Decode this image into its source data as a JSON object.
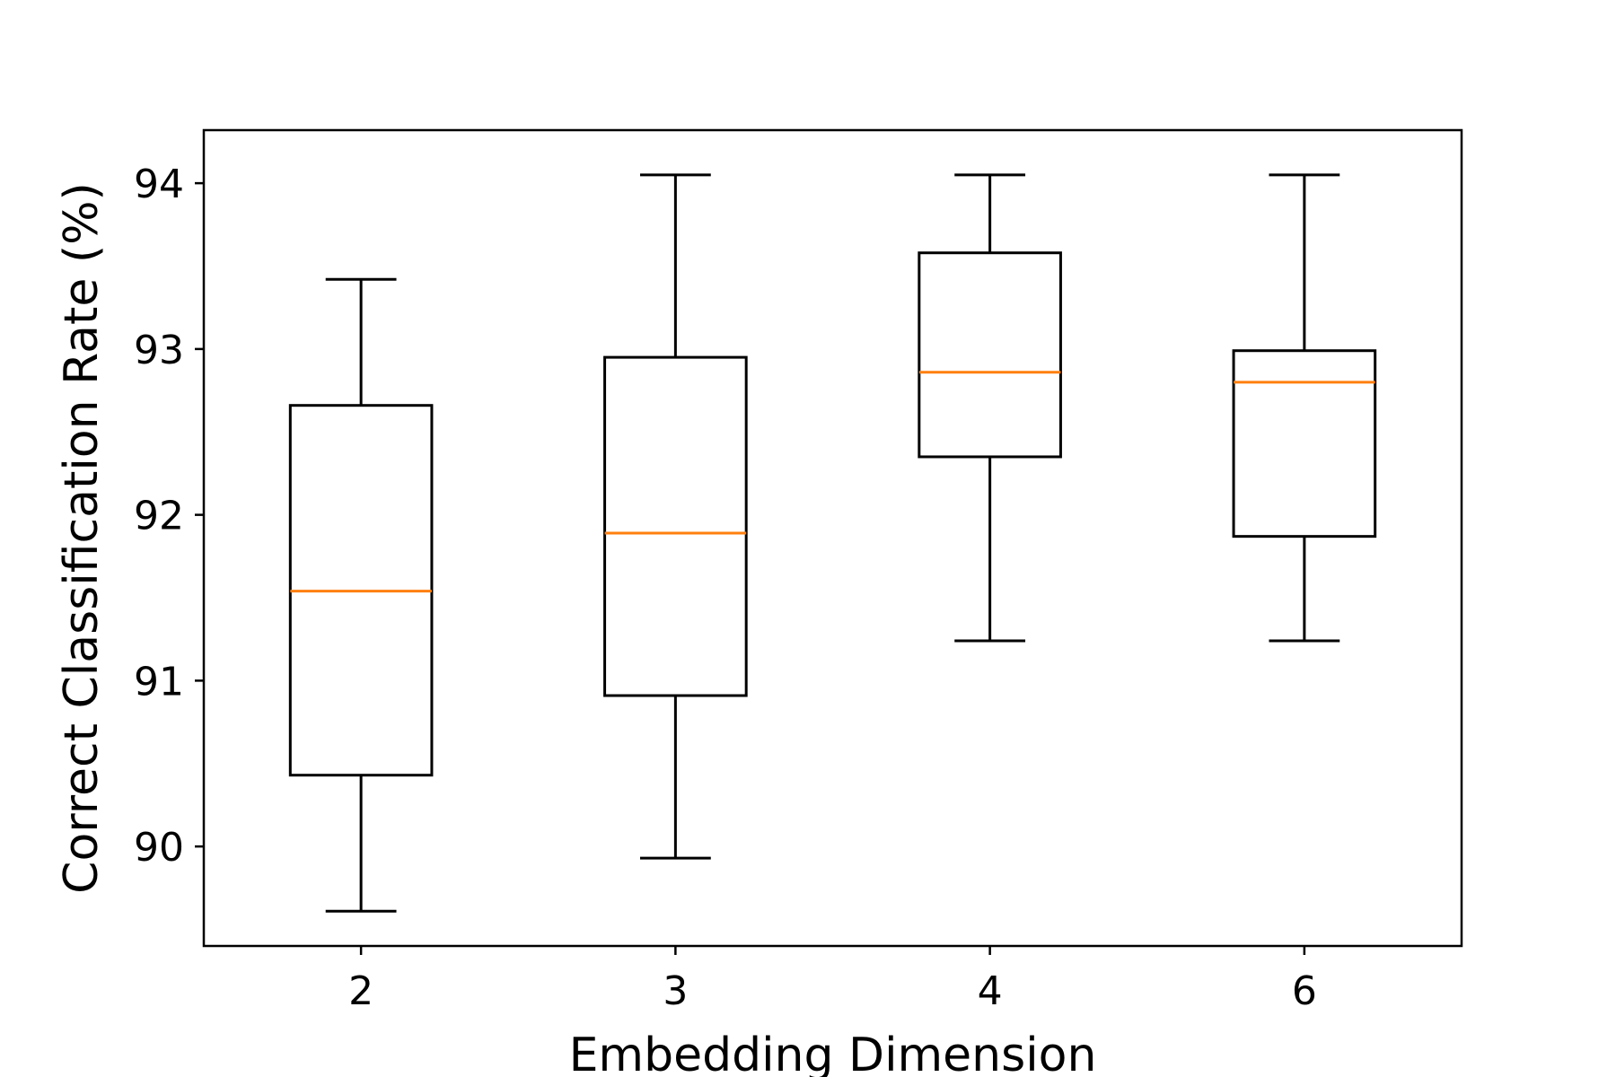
{
  "chart_data": {
    "type": "box",
    "categories": [
      "2",
      "3",
      "4",
      "6"
    ],
    "boxes": [
      {
        "category": "2",
        "whisker_low": 89.61,
        "q1": 90.43,
        "median": 91.54,
        "q3": 92.66,
        "whisker_high": 93.42
      },
      {
        "category": "3",
        "whisker_low": 89.93,
        "q1": 90.91,
        "median": 91.89,
        "q3": 92.95,
        "whisker_high": 94.05
      },
      {
        "category": "4",
        "whisker_low": 91.24,
        "q1": 92.35,
        "median": 92.86,
        "q3": 93.58,
        "whisker_high": 94.05
      },
      {
        "category": "6",
        "whisker_low": 91.24,
        "q1": 91.87,
        "median": 92.8,
        "q3": 92.99,
        "whisker_high": 94.05
      }
    ],
    "title": "",
    "xlabel": "Embedding Dimension",
    "ylabel": "Correct Classification Rate (%)",
    "ylim": [
      89.4,
      94.32
    ],
    "yticks": [
      90,
      91,
      92,
      93,
      94
    ],
    "grid": false,
    "colors": {
      "box": "#000000",
      "median": "#ff7f0e"
    }
  }
}
